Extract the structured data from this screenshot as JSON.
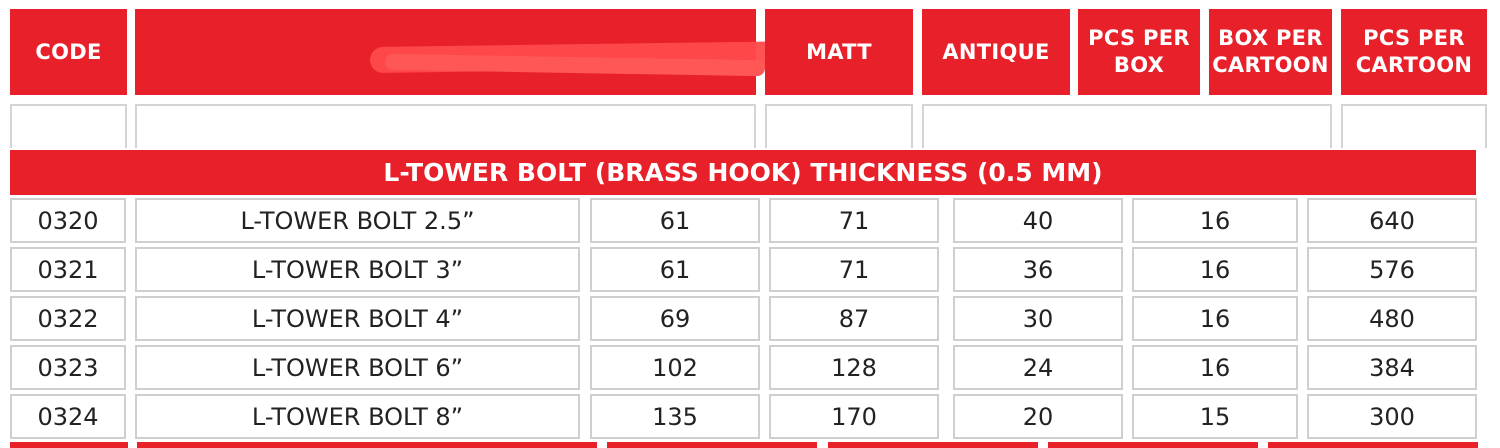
{
  "header": {
    "code": "CODE",
    "description": "",
    "matt": "MATT",
    "antique": "ANTIQUE",
    "pcs_per_box": "PCS PER\nBOX",
    "box_per_cartoon": "BOX PER\nCARTOON",
    "pcs_per_cartoon": "PCS PER\nCARTOON"
  },
  "colors": {
    "accent_red": "#e8202a",
    "redaction_red": "#ff4a4a"
  },
  "section_title": "L-TOWER BOLT (BRASS HOOK) THICKNESS (0.5 MM)",
  "rows": [
    {
      "code": "0320",
      "name": "L-TOWER BOLT 2.5”",
      "matt": "61",
      "antique": "71",
      "pcs_per_box": "40",
      "box_per_cartoon": "16",
      "pcs_per_cartoon": "640"
    },
    {
      "code": "0321",
      "name": "L-TOWER BOLT 3”",
      "matt": "61",
      "antique": "71",
      "pcs_per_box": "36",
      "box_per_cartoon": "16",
      "pcs_per_cartoon": "576"
    },
    {
      "code": "0322",
      "name": "L-TOWER BOLT 4”",
      "matt": "69",
      "antique": "87",
      "pcs_per_box": "30",
      "box_per_cartoon": "16",
      "pcs_per_cartoon": "480"
    },
    {
      "code": "0323",
      "name": "L-TOWER BOLT 6”",
      "matt": "102",
      "antique": "128",
      "pcs_per_box": "24",
      "box_per_cartoon": "16",
      "pcs_per_cartoon": "384"
    },
    {
      "code": "0324",
      "name": "L-TOWER BOLT 8”",
      "matt": "135",
      "antique": "170",
      "pcs_per_box": "20",
      "box_per_cartoon": "15",
      "pcs_per_cartoon": "300"
    }
  ]
}
